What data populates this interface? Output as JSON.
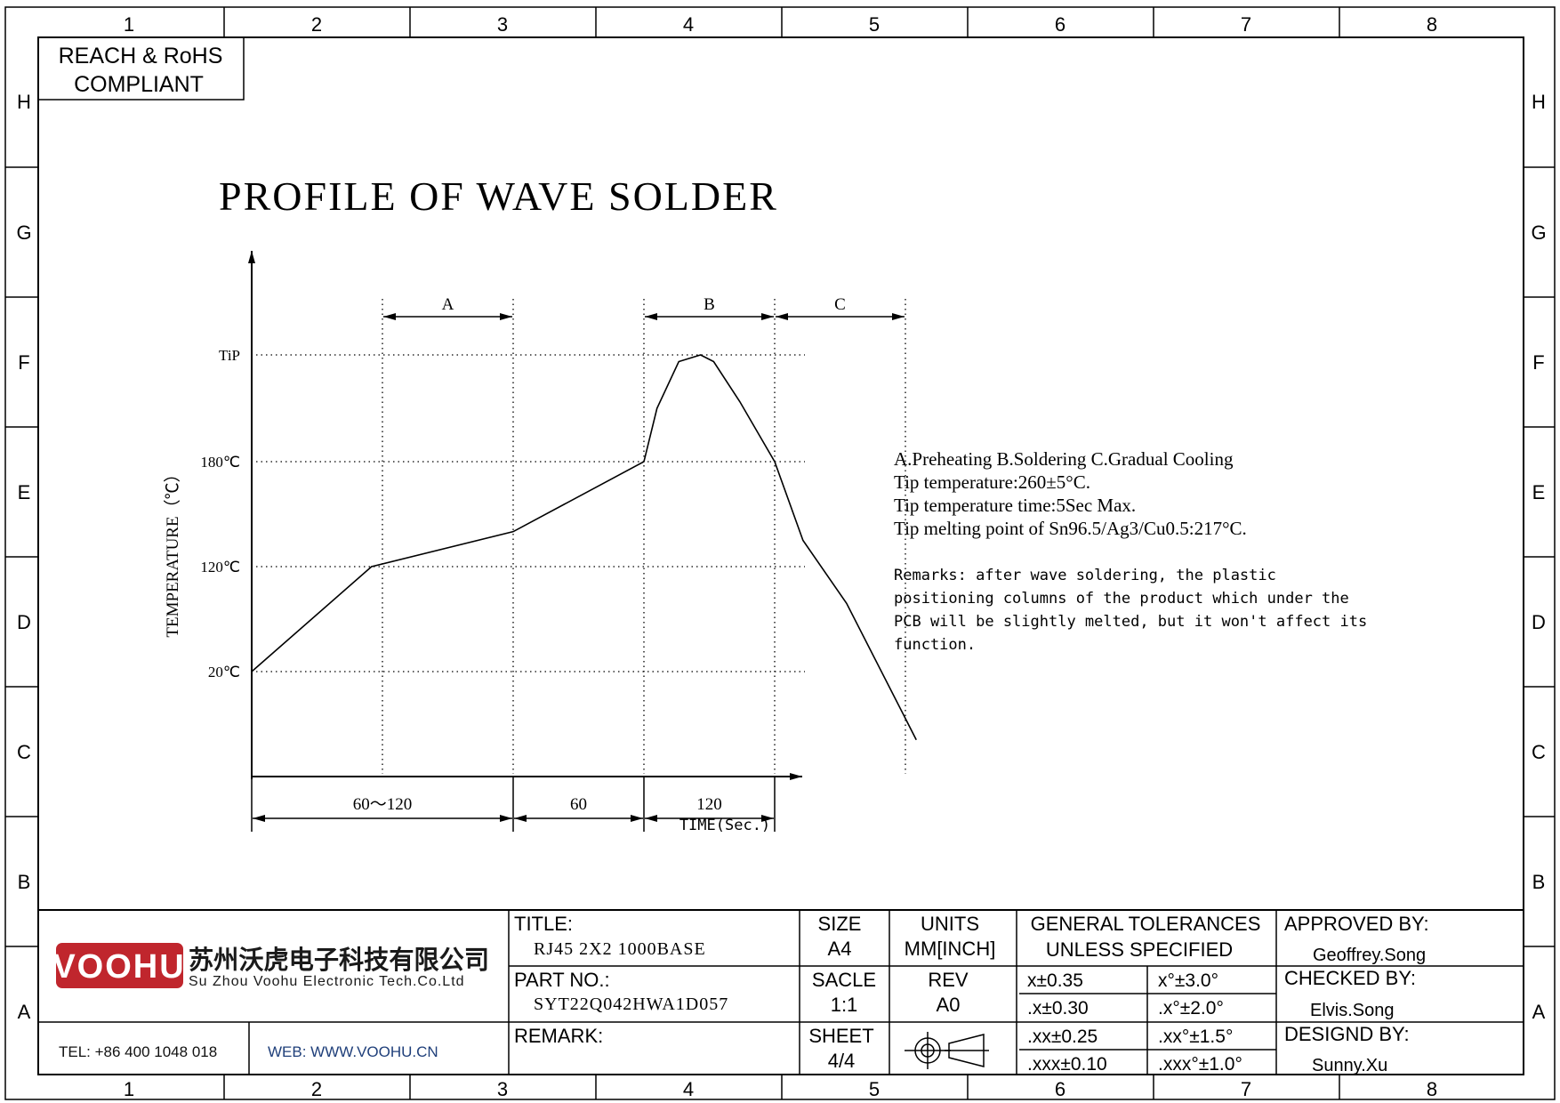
{
  "frame": {
    "columns": [
      "1",
      "2",
      "3",
      "4",
      "5",
      "6",
      "7",
      "8"
    ],
    "rows": [
      "H",
      "G",
      "F",
      "E",
      "D",
      "C",
      "B",
      "A"
    ]
  },
  "compliance": {
    "line1": "REACH & RoHS",
    "line2": "COMPLIANT"
  },
  "drawing_title": "PROFILE OF WAVE SOLDER",
  "chart_data": {
    "type": "line",
    "title": "PROFILE OF WAVE SOLDER",
    "xlabel": "TIME(Sec.)",
    "ylabel": "TEMPERATURE（℃）",
    "y_levels": [
      {
        "label": "TiP",
        "value": 260
      },
      {
        "label": "180℃",
        "value": 180
      },
      {
        "label": "120℃",
        "value": 120
      },
      {
        "label": "20℃",
        "value": 20
      }
    ],
    "zones": [
      {
        "label": "A",
        "start": 60,
        "end": 120
      },
      {
        "label": "B",
        "start": 180,
        "end": 240
      },
      {
        "label": "C",
        "start": 240,
        "end": 300
      }
    ],
    "time_dimensions": [
      {
        "label": "60～120",
        "start": 0,
        "end": 120
      },
      {
        "label": "60",
        "start": 120,
        "end": 180
      },
      {
        "label": "120",
        "start": 180,
        "end": 240
      }
    ],
    "series": [
      {
        "x": [
          0,
          55,
          120,
          180,
          186,
          196,
          206,
          212,
          224,
          240,
          253,
          273,
          305
        ],
        "y": [
          20,
          120,
          140,
          180,
          220,
          255,
          260,
          255,
          225,
          180,
          135,
          85,
          -45
        ]
      }
    ],
    "grid": "dotted"
  },
  "notes": {
    "legend": "A.Preheating  B.Soldering  C.Gradual Cooling",
    "line1": "Tip temperature:260±5°C.",
    "line2": "Tip temperature time:5Sec Max.",
    "line3": "Tip melting point of Sn96.5/Ag3/Cu0.5:217°C.",
    "remarks": [
      "Remarks: after wave soldering, the plastic",
      "positioning columns of the product  which under the",
      "PCB will be slightly melted, but it won't affect its",
      "function."
    ]
  },
  "title_block": {
    "company_logo": "VOOHU",
    "company_cn": "苏州沃虎电子科技有限公司",
    "company_en": "Su Zhou Voohu Electronic Tech.Co.Ltd",
    "tel": "TEL: +86 400 1048 018",
    "web": "WEB: WWW.VOOHU.CN",
    "title_label": "TITLE:",
    "title_value": "RJ45  2X2  1000BASE",
    "part_label": "PART NO.:",
    "part_value": "SYT22Q042HWA1D057",
    "remark_label": "REMARK:",
    "size_label": "SIZE",
    "size_value": "A4",
    "units_label": "UNITS",
    "units_value": "MM[INCH]",
    "scale_label": "SACLE",
    "scale_value": "1:1",
    "rev_label": "REV",
    "rev_value": "A0",
    "sheet_label": "SHEET",
    "sheet_value": "4/4",
    "tolerance_header1": "GENERAL TOLERANCES",
    "tolerance_header2": "UNLESS SPECIFIED",
    "tolerances": [
      [
        "x±0.35",
        "x°±3.0°"
      ],
      [
        ".x±0.30",
        ".x°±2.0°"
      ],
      [
        ".xx±0.25",
        ".xx°±1.5°"
      ],
      [
        ".xxx±0.10",
        ".xxx°±1.0°"
      ]
    ],
    "approved_label": "APPROVED BY:",
    "approved_value": "Geoffrey.Song",
    "checked_label": "CHECKED BY:",
    "checked_value": "Elvis.Song",
    "designed_label": "DESIGND BY:",
    "designed_value": "Sunny.Xu"
  }
}
